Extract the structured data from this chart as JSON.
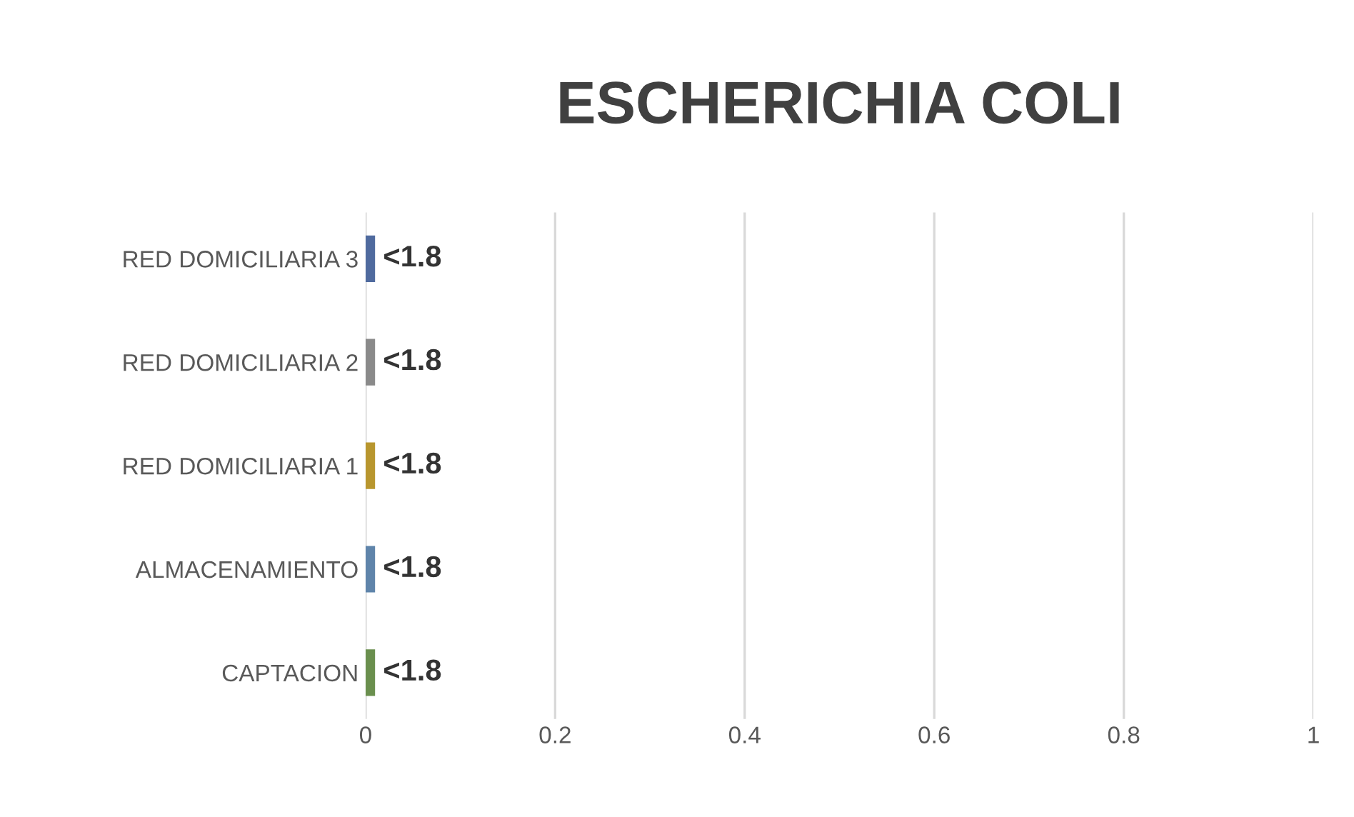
{
  "chart_data": {
    "type": "bar",
    "orientation": "horizontal",
    "title": "ESCHERICHIA COLI",
    "categories": [
      "RED DOMICILIARIA 3",
      "RED DOMICILIARIA 2",
      "RED DOMICILIARIA 1",
      "ALMACENAMIENTO",
      "CAPTACION"
    ],
    "values": [
      0.01,
      0.01,
      0.01,
      0.01,
      0.01
    ],
    "colors": [
      "#4f6a9e",
      "#8a8a8a",
      "#b8962e",
      "#5f84aa",
      "#6a8f4e"
    ],
    "value_labels": [
      "<1.8",
      "<1.8",
      "<1.8",
      "<1.8",
      "<1.8"
    ],
    "xlim": [
      0,
      1
    ],
    "xticks": [
      0,
      0.2,
      0.4,
      0.6,
      0.8,
      1
    ],
    "grid": "x"
  }
}
